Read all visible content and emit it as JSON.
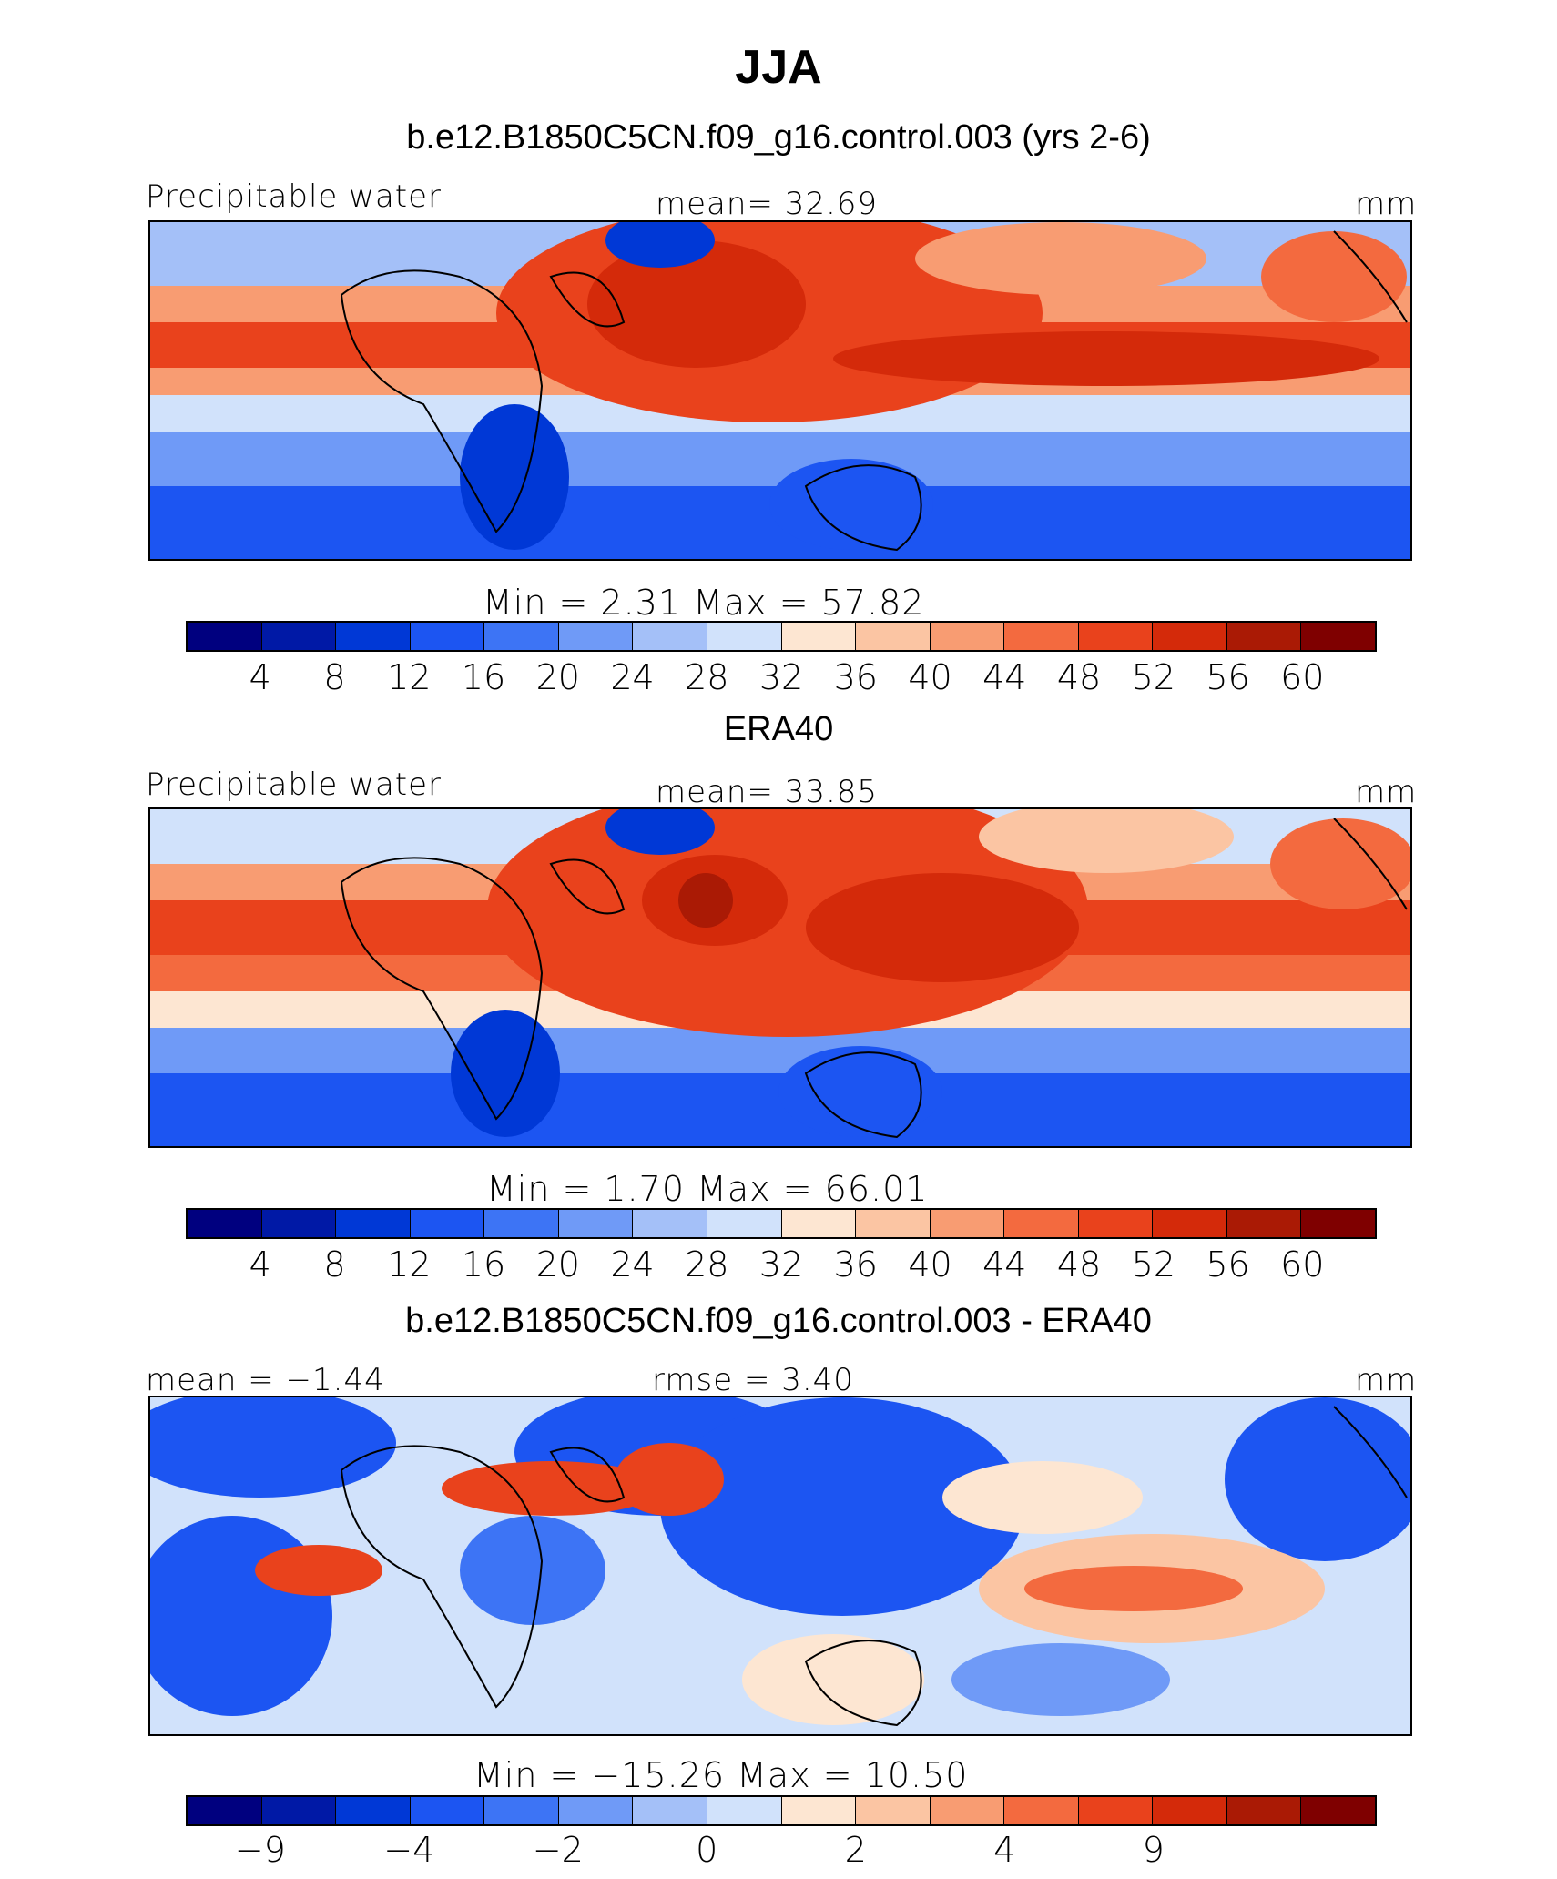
{
  "title": "JJA",
  "colors": [
    "#00007f",
    "#0019a6",
    "#0038d6",
    "#1c55f2",
    "#3d74f5",
    "#6f9af7",
    "#a4c0f8",
    "#d1e2fb",
    "#fde6d2",
    "#fbc5a3",
    "#f89c72",
    "#f36a3f",
    "#e9421c",
    "#d42a0a",
    "#aa1a05",
    "#7f0000"
  ],
  "panels": [
    {
      "title": "b.e12.B1850C5CN.f09_g16.control.003 (yrs 2-6)",
      "left": "Precipitable water",
      "center": "mean=   32.69",
      "right": "mm",
      "minmax": "Min  =     2.31  Max  =    57.82",
      "ticks": [
        "4",
        "8",
        "12",
        "16",
        "20",
        "24",
        "28",
        "32",
        "36",
        "40",
        "44",
        "48",
        "52",
        "56",
        "60"
      ]
    },
    {
      "title": "ERA40",
      "left": "Precipitable water",
      "center": "mean=   33.85",
      "right": "mm",
      "minmax": "Min  =     1.70  Max  =    66.01",
      "ticks": [
        "4",
        "8",
        "12",
        "16",
        "20",
        "24",
        "28",
        "32",
        "36",
        "40",
        "44",
        "48",
        "52",
        "56",
        "60"
      ]
    },
    {
      "title": "b.e12.B1850C5CN.f09_g16.control.003 - ERA40",
      "left": "mean  =   −1.44",
      "center": "rmse  =     3.40",
      "right": "mm",
      "minmax": "Min  =  −15.26  Max  =    10.50",
      "ticks": [
        "−9",
        "",
        "−4",
        "",
        "−2",
        "",
        "0",
        "",
        "2",
        "",
        "4",
        "",
        "9",
        ""
      ]
    }
  ],
  "chart_data": [
    {
      "type": "heatmap",
      "title": "b.e12.B1850C5CN.f09_g16.control.003 (yrs 2-6)",
      "variable": "Precipitable water",
      "units": "mm",
      "mean": 32.69,
      "min": 2.31,
      "max": 57.82,
      "levels": [
        4,
        8,
        12,
        16,
        20,
        24,
        28,
        32,
        36,
        40,
        44,
        48,
        52,
        56,
        60
      ]
    },
    {
      "type": "heatmap",
      "title": "ERA40",
      "variable": "Precipitable water",
      "units": "mm",
      "mean": 33.85,
      "min": 1.7,
      "max": 66.01,
      "levels": [
        4,
        8,
        12,
        16,
        20,
        24,
        28,
        32,
        36,
        40,
        44,
        48,
        52,
        56,
        60
      ]
    },
    {
      "type": "heatmap",
      "title": "b.e12.B1850C5CN.f09_g16.control.003 - ERA40",
      "units": "mm",
      "mean": -1.44,
      "rmse": 3.4,
      "min": -15.26,
      "max": 10.5,
      "levels": [
        -9,
        -4,
        -2,
        0,
        2,
        4,
        9
      ]
    }
  ]
}
